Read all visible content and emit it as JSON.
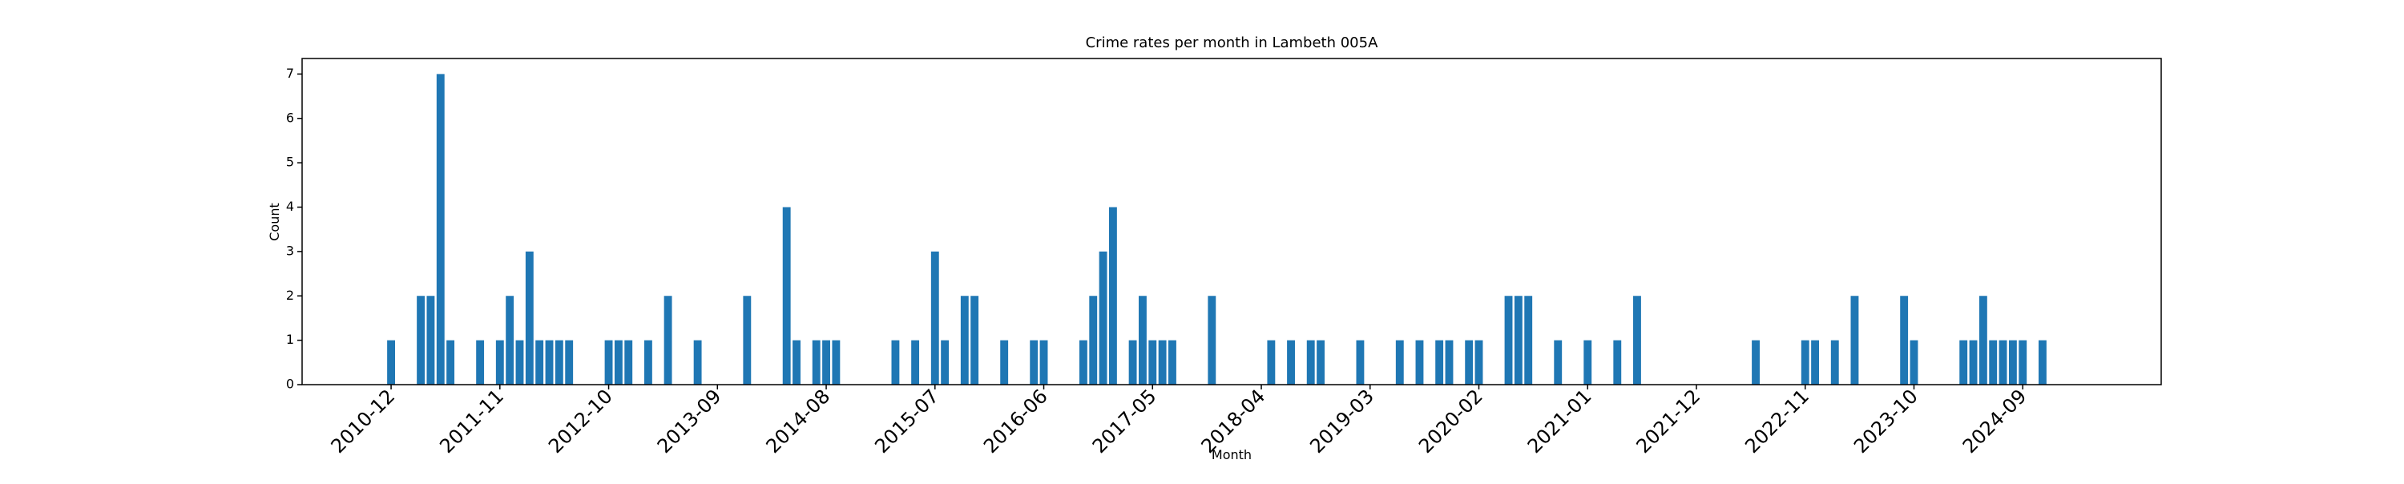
{
  "chart_data": {
    "type": "bar",
    "title": "Crime rates per month in Lambeth 005A",
    "x_label": "Month",
    "y_label": "Count",
    "x": [
      "2010-12",
      "2011-03",
      "2011-04",
      "2011-05",
      "2011-06",
      "2011-09",
      "2011-11",
      "2011-12",
      "2012-01",
      "2012-02",
      "2012-03",
      "2012-04",
      "2012-05",
      "2012-06",
      "2012-10",
      "2012-11",
      "2012-12",
      "2013-02",
      "2013-04",
      "2013-07",
      "2013-12",
      "2014-04",
      "2014-05",
      "2014-07",
      "2014-08",
      "2014-09",
      "2015-03",
      "2015-05",
      "2015-07",
      "2015-08",
      "2015-10",
      "2015-11",
      "2016-02",
      "2016-05",
      "2016-06",
      "2016-10",
      "2016-11",
      "2016-12",
      "2017-01",
      "2017-03",
      "2017-04",
      "2017-05",
      "2017-06",
      "2017-07",
      "2017-11",
      "2018-05",
      "2018-07",
      "2018-09",
      "2018-10",
      "2019-02",
      "2019-06",
      "2019-08",
      "2019-10",
      "2019-11",
      "2020-01",
      "2020-02",
      "2020-05",
      "2020-06",
      "2020-07",
      "2020-10",
      "2021-01",
      "2021-04",
      "2021-06",
      "2022-06",
      "2022-11",
      "2022-12",
      "2023-02",
      "2023-04",
      "2023-09",
      "2023-10",
      "2024-03",
      "2024-04",
      "2024-05",
      "2024-06",
      "2024-07",
      "2024-08",
      "2024-09",
      "2024-11"
    ],
    "values": [
      1,
      2,
      2,
      7,
      1,
      1,
      1,
      2,
      1,
      3,
      1,
      1,
      1,
      1,
      1,
      1,
      1,
      1,
      2,
      1,
      2,
      4,
      1,
      1,
      1,
      1,
      1,
      1,
      3,
      1,
      2,
      2,
      1,
      1,
      1,
      1,
      2,
      3,
      4,
      1,
      2,
      1,
      1,
      1,
      2,
      1,
      1,
      1,
      1,
      1,
      1,
      1,
      1,
      1,
      1,
      1,
      2,
      2,
      2,
      1,
      1,
      1,
      2,
      1,
      1,
      1,
      1,
      2,
      2,
      1,
      1,
      1,
      2,
      1,
      1,
      1,
      1,
      1
    ],
    "color": "#1f77b4",
    "xlim": [
      "2010-03",
      "2025-11"
    ],
    "xticks": [
      "2010-12",
      "2011-11",
      "2012-10",
      "2013-09",
      "2014-08",
      "2015-07",
      "2016-06",
      "2017-05",
      "2018-04",
      "2019-03",
      "2020-02",
      "2021-01",
      "2021-12",
      "2022-11",
      "2023-10",
      "2024-09"
    ],
    "ylim": [
      0,
      7.35
    ],
    "yticks": [
      0,
      1,
      2,
      3,
      4,
      5,
      6,
      7
    ],
    "grid": false
  }
}
